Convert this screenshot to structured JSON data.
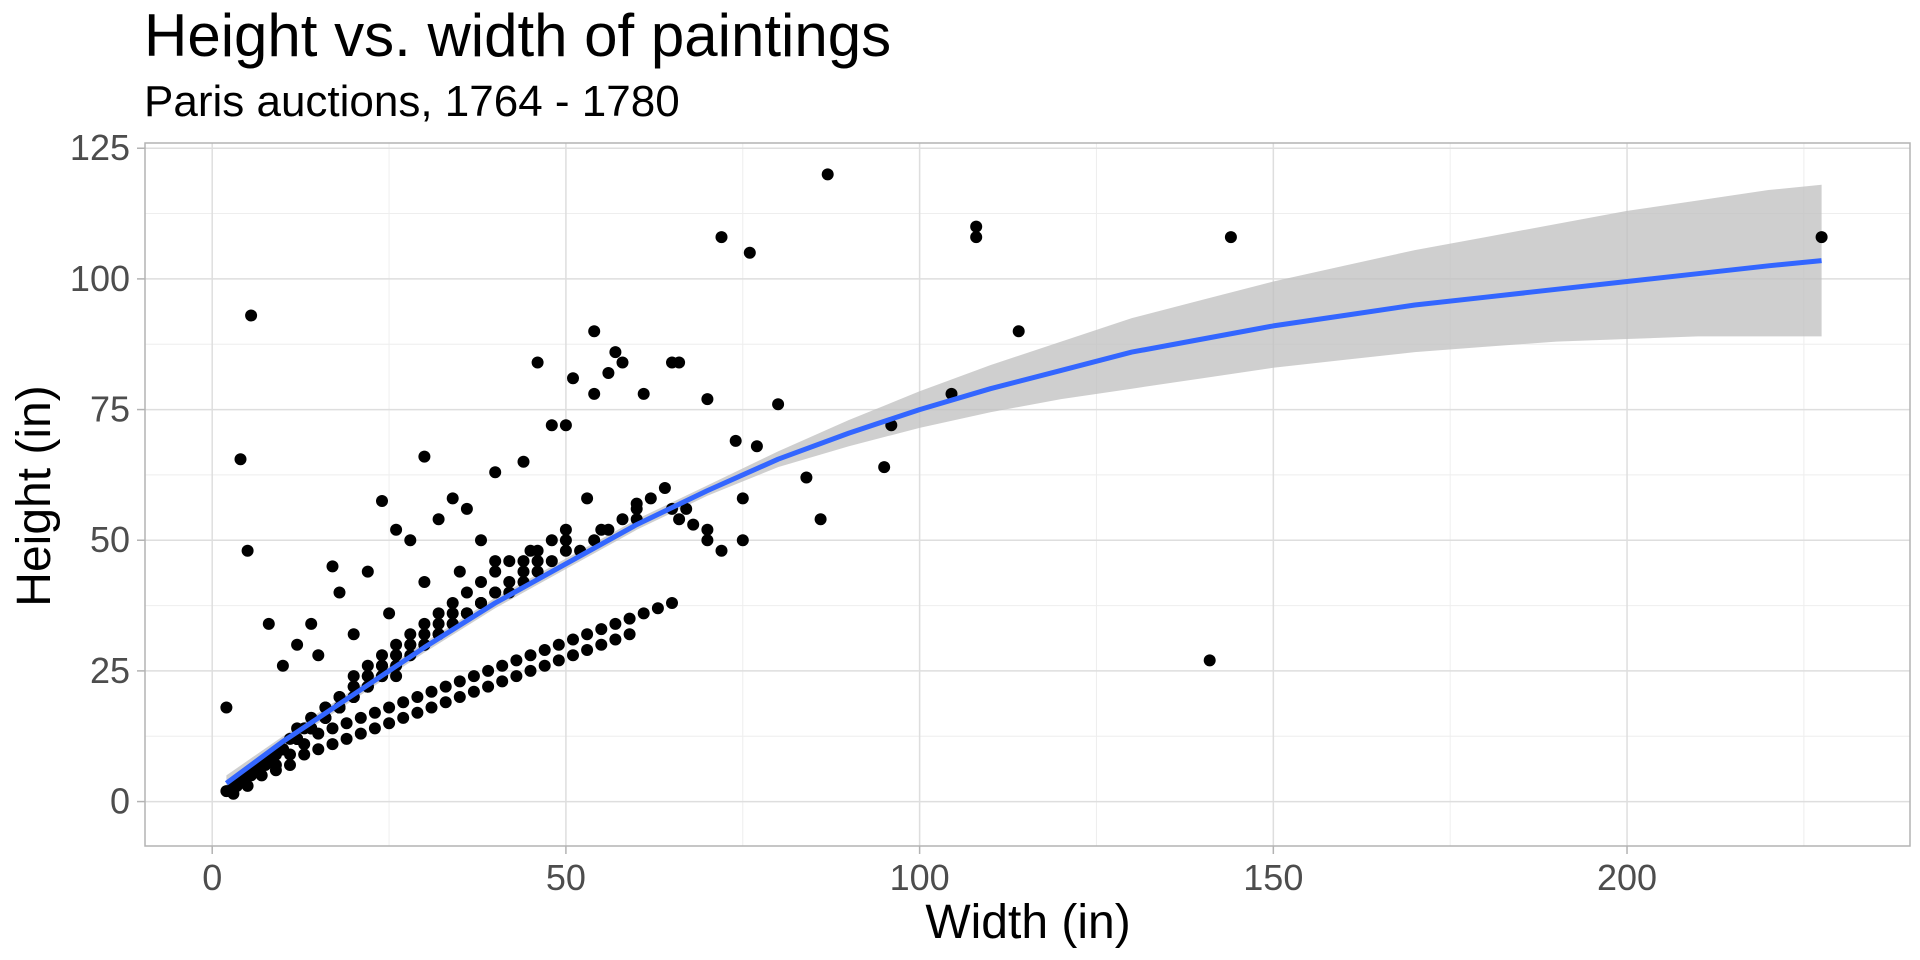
{
  "chart_data": {
    "type": "scatter",
    "title": "Height vs. width of paintings",
    "subtitle": "Paris auctions, 1764 - 1780",
    "xlabel": "Width (in)",
    "ylabel": "Height (in)",
    "xlim": [
      -9.5,
      240
    ],
    "ylim": [
      -8.5,
      126
    ],
    "x_ticks": [
      0,
      50,
      100,
      150,
      200
    ],
    "x_tick_labels": [
      "0",
      "50",
      "100",
      "150",
      "200"
    ],
    "y_ticks": [
      0,
      25,
      50,
      75,
      100,
      125
    ],
    "y_tick_labels": [
      "0",
      "25",
      "50",
      "75",
      "100",
      "125"
    ],
    "grid": true,
    "colors": {
      "points": "#000000",
      "smooth_line": "#3366ff",
      "confidence_band": "#bfbfbf",
      "grid_major": "#dedede",
      "grid_minor": "#eeeeee",
      "panel_border": "#b3b3b3"
    },
    "series": [
      {
        "type": "points",
        "x": [
          87,
          76,
          72,
          108,
          108,
          144,
          227.5,
          5.5,
          114,
          104.5,
          96,
          95,
          141,
          54,
          57,
          58,
          56,
          54,
          66,
          65,
          61,
          70,
          74,
          77,
          80,
          46,
          51,
          4,
          5,
          8,
          2,
          17,
          30,
          24,
          48,
          50,
          40,
          44,
          53,
          60,
          64,
          66,
          67,
          68,
          70,
          72,
          75,
          84,
          86,
          38,
          36,
          34,
          32,
          28,
          26,
          22,
          18,
          14,
          12,
          10,
          15,
          20,
          25,
          30,
          35,
          40,
          45,
          50,
          55,
          60,
          65,
          70,
          75,
          30,
          32,
          34,
          36,
          38,
          40,
          42,
          44,
          46,
          48,
          50,
          52,
          54,
          56,
          58,
          60,
          62,
          20,
          22,
          24,
          26,
          28,
          30,
          32,
          34,
          36,
          38,
          40,
          42,
          44,
          46,
          48,
          50,
          16,
          18,
          20,
          22,
          24,
          26,
          28,
          30,
          32,
          34,
          36,
          38,
          40,
          42,
          44,
          46,
          12,
          14,
          16,
          18,
          20,
          22,
          24,
          26,
          28,
          30,
          32,
          34,
          36,
          38,
          10,
          12,
          14,
          16,
          18,
          20,
          22,
          24,
          26,
          28,
          30,
          32,
          8,
          10,
          12,
          14,
          16,
          18,
          20,
          22,
          24,
          26,
          6,
          8,
          10,
          12,
          14,
          16,
          18,
          20,
          22,
          4,
          6,
          8,
          10,
          12,
          14,
          16,
          18,
          3,
          4,
          5,
          6,
          7,
          8,
          9,
          10,
          11,
          12,
          13,
          14,
          2,
          3,
          4,
          5,
          6,
          7,
          8,
          9,
          10,
          2.5,
          3.5,
          4.5,
          5.5,
          6.5,
          7.5,
          8.5,
          3,
          5,
          7,
          9,
          11,
          13,
          15,
          17,
          19,
          21,
          23,
          25,
          27,
          29,
          31,
          33,
          35,
          37,
          39,
          41,
          43,
          45,
          47,
          49,
          51,
          53,
          55,
          57,
          59,
          61,
          63,
          65,
          9,
          11,
          13,
          15,
          17,
          19,
          21,
          23,
          25,
          27,
          29,
          31,
          33,
          35,
          37,
          39,
          41,
          43,
          45,
          47,
          49,
          51,
          53,
          55,
          57,
          59
        ],
        "y": [
          120,
          105,
          108,
          110,
          108,
          108,
          108,
          93,
          90,
          78,
          72,
          64,
          27,
          90,
          86,
          84,
          82,
          78,
          84,
          84,
          78,
          77,
          69,
          68,
          76,
          84,
          81,
          65.5,
          48,
          34,
          18,
          45,
          66,
          57.5,
          72,
          72,
          63,
          65,
          58,
          57,
          60,
          54,
          56,
          53,
          50,
          48,
          50,
          62,
          54,
          50,
          56,
          58,
          54,
          50,
          52,
          44,
          40,
          34,
          30,
          26,
          28,
          32,
          36,
          42,
          44,
          46,
          48,
          50,
          52,
          54,
          56,
          52,
          58,
          30,
          32,
          34,
          36,
          38,
          40,
          40,
          42,
          44,
          46,
          48,
          48,
          50,
          52,
          54,
          56,
          58,
          24,
          26,
          28,
          30,
          32,
          34,
          36,
          38,
          40,
          42,
          44,
          46,
          46,
          48,
          50,
          52,
          18,
          20,
          22,
          24,
          26,
          28,
          30,
          32,
          34,
          36,
          36,
          38,
          40,
          42,
          44,
          46,
          14,
          16,
          18,
          20,
          22,
          24,
          26,
          28,
          30,
          30,
          32,
          34,
          36,
          38,
          10,
          12,
          14,
          16,
          18,
          20,
          22,
          24,
          26,
          28,
          30,
          32,
          8,
          10,
          12,
          14,
          16,
          18,
          20,
          22,
          24,
          24,
          6,
          8,
          10,
          12,
          14,
          16,
          18,
          20,
          22,
          4,
          6,
          8,
          10,
          12,
          14,
          16,
          18,
          3,
          4,
          5,
          6,
          7,
          8,
          9,
          10,
          12,
          12,
          14,
          16,
          2,
          3,
          4,
          5,
          6,
          7,
          8,
          9,
          10,
          2,
          3,
          4,
          5,
          6,
          7,
          8,
          1.5,
          3,
          5,
          7,
          9,
          11,
          13,
          14,
          15,
          16,
          17,
          18,
          19,
          20,
          21,
          22,
          23,
          24,
          25,
          26,
          27,
          28,
          29,
          30,
          31,
          32,
          33,
          34,
          35,
          36,
          37,
          38,
          6,
          7,
          9,
          10,
          11,
          12,
          13,
          14,
          15,
          16,
          17,
          18,
          19,
          20,
          21,
          22,
          23,
          24,
          25,
          26,
          27,
          28,
          29,
          30,
          31,
          32
        ]
      },
      {
        "type": "smooth",
        "name": "",
        "x": [
          2,
          10,
          20,
          30,
          40,
          50,
          60,
          70,
          80,
          90,
          100,
          110,
          120,
          130,
          140,
          150,
          160,
          170,
          180,
          190,
          200,
          210,
          220,
          227.5
        ],
        "y": [
          3.5,
          11.5,
          20.5,
          29.5,
          38,
          45.5,
          53,
          59.5,
          65.5,
          70.5,
          75,
          79,
          82.5,
          86,
          88.5,
          91,
          93,
          95,
          96.5,
          98,
          99.5,
          101,
          102.5,
          103.5
        ],
        "ci_lower": [
          2,
          10.5,
          19.5,
          28.5,
          37,
          44.5,
          52,
          58.5,
          64,
          68,
          71.5,
          74.5,
          77,
          79,
          81,
          83,
          84.5,
          86,
          87,
          88,
          88.5,
          89,
          89,
          89
        ],
        "ci_upper": [
          5,
          12.5,
          21.5,
          30.5,
          39,
          46.5,
          54,
          60.5,
          67,
          73,
          78.5,
          83.5,
          88,
          92.5,
          96,
          99.5,
          102.5,
          105.5,
          108,
          110.5,
          113,
          115,
          117,
          118
        ]
      }
    ]
  }
}
